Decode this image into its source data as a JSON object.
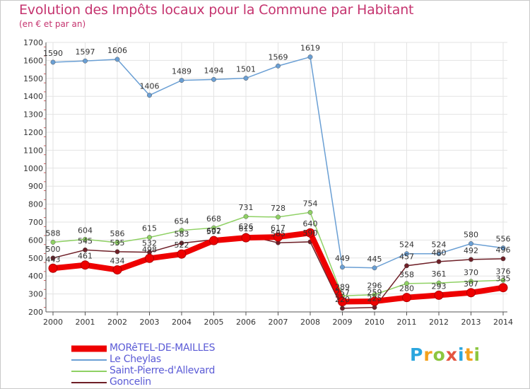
{
  "title": "Evolution des Impôts locaux pour la Commune par Habitant",
  "subtitle": "(en € et par an)",
  "logo": "Proxiti",
  "chart_data": {
    "type": "line",
    "title": "Evolution des Impôts locaux pour la Commune par Habitant",
    "ylabel": "(en € et par an)",
    "xlabel": "",
    "ylim": [
      200,
      1700
    ],
    "yticks": [
      200,
      300,
      400,
      500,
      600,
      700,
      800,
      900,
      1000,
      1100,
      1200,
      1300,
      1400,
      1500,
      1600,
      1700
    ],
    "categories": [
      "2000",
      "2001",
      "2002",
      "2003",
      "2004",
      "2005",
      "2006",
      "2007",
      "2008",
      "2009",
      "2010",
      "2011",
      "2012",
      "2013",
      "2014"
    ],
    "legend_position": "bottom-left",
    "grid": true,
    "series": [
      {
        "name": "MORêTEL-DE-MAILLES",
        "color": "#ee0000",
        "emphasis": true,
        "values": [
          443,
          461,
          434,
          498,
          522,
          597,
          613,
          617,
          640,
          257,
          259,
          280,
          293,
          307,
          335
        ]
      },
      {
        "name": "Le Cheylas",
        "color": "#6a9fd4",
        "emphasis": false,
        "values": [
          1590,
          1597,
          1606,
          1406,
          1489,
          1494,
          1501,
          1569,
          1619,
          449,
          445,
          524,
          524,
          580,
          556
        ]
      },
      {
        "name": "Saint-Pierre-d'Allevard",
        "color": "#8fd164",
        "emphasis": false,
        "values": [
          588,
          604,
          586,
          615,
          654,
          668,
          731,
          728,
          754,
          289,
          296,
          358,
          361,
          370,
          376
        ]
      },
      {
        "name": "Goncelin",
        "color": "#6e1f27",
        "emphasis": false,
        "values": [
          500,
          545,
          535,
          532,
          583,
          602,
          626,
          585,
          590,
          220,
          225,
          457,
          480,
          492,
          496
        ]
      }
    ]
  }
}
